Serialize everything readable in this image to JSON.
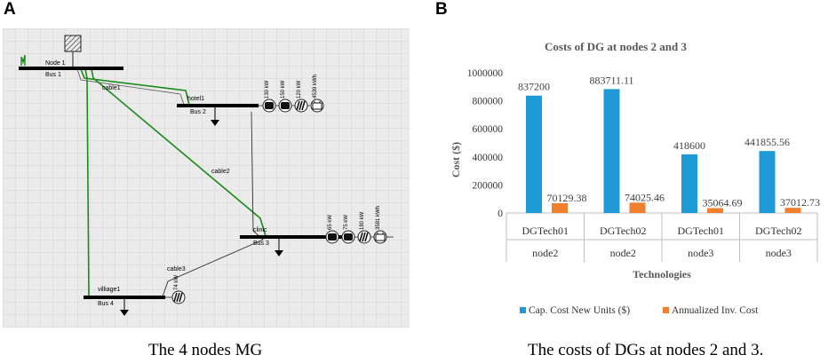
{
  "panel_a": {
    "letter": "A",
    "caption": "The 4 nodes MG",
    "buses": [
      {
        "name": "Node 1",
        "bus": "Bus 1"
      },
      {
        "name": "hotel1",
        "bus": "Bus 2"
      },
      {
        "name": "clinic",
        "bus": "Bus 3"
      },
      {
        "name": "villiage1",
        "bus": "Bus 4"
      }
    ],
    "cables": [
      "cable1",
      "cable2",
      "cable3"
    ],
    "hotel_units": [
      "130 kW",
      "150 kW",
      "120 kW",
      "4539 kWh"
    ],
    "clinic_units": [
      "65 kW",
      "75 kW",
      "180 kW",
      "3581 kWh"
    ],
    "village_units": [
      "74 kW"
    ],
    "colors": {
      "grid_bg": "#ebebeb",
      "gridline": "#d4d4d4",
      "bus": "#000000",
      "cable_green": "#1a8a1a",
      "cable_dark": "#404040"
    }
  },
  "panel_b": {
    "letter": "B",
    "caption": "The costs of DGs at nodes 2 and 3.",
    "chart_data": {
      "type": "bar",
      "title": "Costs of DG at nodes 2 and 3",
      "xlabel": "Technologies",
      "ylabel": "Cost ($)",
      "ylim": [
        0,
        1000000
      ],
      "yticks": [
        "0",
        "200000",
        "400000",
        "600000",
        "800000",
        "1000000"
      ],
      "categories": [
        {
          "tech": "DGTech01",
          "node": "node2"
        },
        {
          "tech": "DGTech02",
          "node": "node2"
        },
        {
          "tech": "DGTech01",
          "node": "node3"
        },
        {
          "tech": "DGTech02",
          "node": "node3"
        }
      ],
      "series": [
        {
          "name": "Cap. Cost New Units ($)",
          "color": "#1f9ad6",
          "values": [
            837200,
            883711.11,
            418600,
            441855.56
          ],
          "labels": [
            "837200",
            "883711.11",
            "418600",
            "441855.56"
          ]
        },
        {
          "name": "Annualized Inv. Cost",
          "color": "#f07f2e",
          "values": [
            70129.38,
            74025.46,
            35064.69,
            37012.73
          ],
          "labels": [
            "70129.38",
            "74025.46",
            "35064.69",
            "37012.73"
          ]
        }
      ]
    }
  }
}
